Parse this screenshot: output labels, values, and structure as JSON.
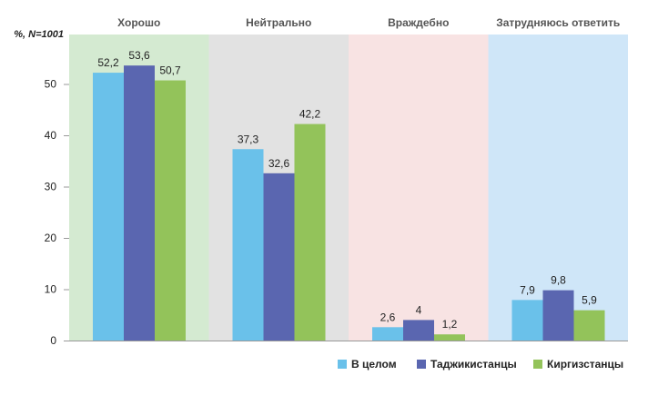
{
  "chart_data": {
    "type": "bar",
    "ylabel": "%, N=1001",
    "ylim": [
      0,
      60
    ],
    "yticks": [
      0,
      10,
      20,
      30,
      40,
      50
    ],
    "grid": false,
    "legend_position": "bottom-right",
    "categories": [
      "Хорошо",
      "Нейтрально",
      "Враждебно",
      "Затрудняюсь ответить"
    ],
    "category_colors": [
      "#d4ead1",
      "#e2e2e2",
      "#f8e3e3",
      "#cfe6f8"
    ],
    "series": [
      {
        "name": "В целом",
        "color": "#6ac1ea",
        "values": [
          52.2,
          37.3,
          2.6,
          7.9
        ],
        "labels": [
          "52,2",
          "37,3",
          "2,6",
          "7,9"
        ]
      },
      {
        "name": "Таджикистанцы",
        "color": "#5a66b0",
        "values": [
          53.6,
          32.6,
          4,
          9.8
        ],
        "labels": [
          "53,6",
          "32,6",
          "4",
          "9,8"
        ]
      },
      {
        "name": "Киргизстанцы",
        "color": "#93c35a",
        "values": [
          50.7,
          42.2,
          1.2,
          5.9
        ],
        "labels": [
          "50,7",
          "42,2",
          "1,2",
          "5,9"
        ]
      }
    ]
  }
}
